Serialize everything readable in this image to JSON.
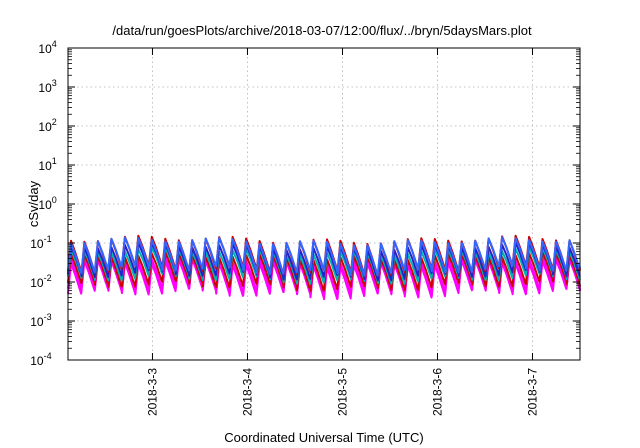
{
  "chart_data": {
    "type": "line",
    "title": "/data/run/goesPlots/archive/2018-03-07/12:00/flux/../bryn/5daysMars.plot",
    "xlabel": "Coordinated Universal Time (UTC)",
    "ylabel": "cSv/day",
    "yscale": "log",
    "ylim": [
      0.0001,
      10000
    ],
    "y_ticks": [
      {
        "base": "10",
        "exp": "-4"
      },
      {
        "base": "10",
        "exp": "-3"
      },
      {
        "base": "10",
        "exp": "-2"
      },
      {
        "base": "10",
        "exp": "-1"
      },
      {
        "base": "10",
        "exp": "0"
      },
      {
        "base": "10",
        "exp": "1"
      },
      {
        "base": "10",
        "exp": "2"
      },
      {
        "base": "10",
        "exp": "3"
      },
      {
        "base": "10",
        "exp": "4"
      }
    ],
    "xlim": [
      "2018-03-02 02:40",
      "2018-03-07 12:00"
    ],
    "x_tick_labels": [
      "2018-3-3",
      "2018-3-4",
      "2018-3-5",
      "2018-3-6",
      "2018-3-7"
    ],
    "x_tick_values": [
      "2018-03-03",
      "2018-03-04",
      "2018-03-05",
      "2018-03-06",
      "2018-03-07"
    ],
    "grid": true,
    "pattern": "sawtooth, about 7 cycles per day",
    "series": [
      {
        "color": "#ff00ff",
        "peak": 0.03,
        "trough": 0.005
      },
      {
        "color": "#ff00ff",
        "peak": 0.035,
        "trough": 0.006
      },
      {
        "color": "#cc0000",
        "peak": 0.045,
        "trough": 0.008
      },
      {
        "color": "#00b3b3",
        "peak": 0.06,
        "trough": 0.012
      },
      {
        "color": "#2222cc",
        "peak": 0.08,
        "trough": 0.015
      },
      {
        "color": "#cc0000",
        "peak": 0.12,
        "trough": 0.02
      },
      {
        "color": "#3366ff",
        "peak": 0.11,
        "trough": 0.02
      }
    ]
  }
}
